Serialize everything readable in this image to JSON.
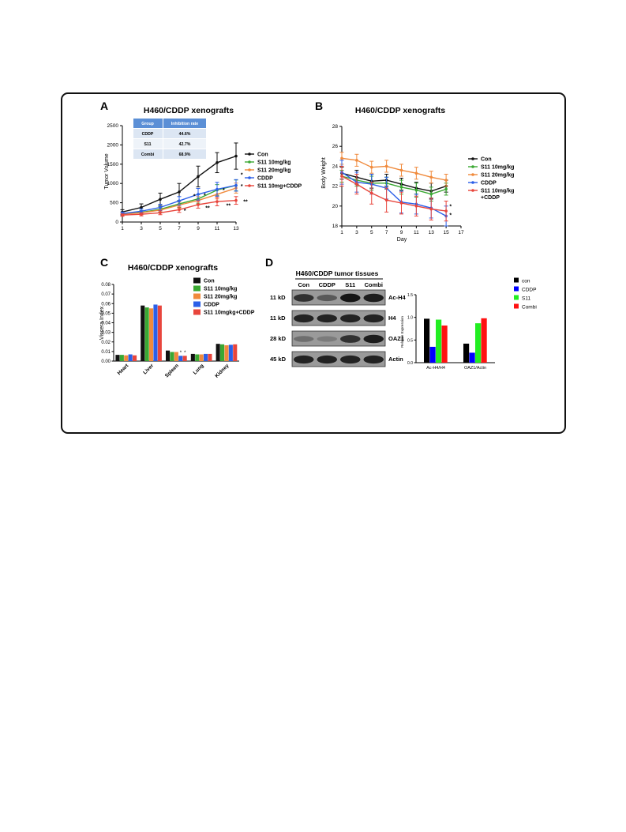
{
  "panel_labels": {
    "A": "A",
    "B": "B",
    "C": "C",
    "D": "D"
  },
  "colors": {
    "con": "#111111",
    "s11_10": "#3aa832",
    "s11_20": "#f08a3c",
    "cddp": "#2b5fe8",
    "combi": "#e8453c",
    "d_con": "#000000",
    "d_cddp": "#0000ff",
    "d_s11": "#22ee22",
    "d_combi": "#ff1111",
    "table_header": "#5b8fd6",
    "table_row": "#dce6f3"
  },
  "inhibition_table": {
    "headers": [
      "Group",
      "Inhibition rate"
    ],
    "rows": [
      [
        "CDDP",
        "44.6%"
      ],
      [
        "S11",
        "42.7%"
      ],
      [
        "Combi",
        "68.9%"
      ]
    ]
  },
  "blot": {
    "title": "H460/CDDP tumor tissues",
    "lanes": [
      "Con",
      "CDDP",
      "S11",
      "Combi"
    ],
    "bands": [
      {
        "kd": "11 kD",
        "name": "Ac-H4",
        "intensity": [
          0.75,
          0.45,
          0.95,
          0.9
        ]
      },
      {
        "kd": "11 kD",
        "name": "H4",
        "intensity": [
          0.85,
          0.85,
          0.85,
          0.85
        ]
      },
      {
        "kd": "28 kD",
        "name": "OAZ1",
        "intensity": [
          0.3,
          0.2,
          0.75,
          0.9
        ]
      },
      {
        "kd": "45 kD",
        "name": "Actin",
        "intensity": [
          0.85,
          0.85,
          0.85,
          0.85
        ]
      }
    ]
  },
  "chart_data": [
    {
      "type": "line",
      "title": "H460/CDDP xenografts",
      "xlabel": "",
      "ylabel": "Tumor Volume",
      "x": [
        1,
        3,
        5,
        7,
        9,
        11,
        13
      ],
      "xticks": [
        "1",
        "3",
        "5",
        "7",
        "9",
        "11",
        "13"
      ],
      "ylim": [
        0,
        2500
      ],
      "yticks": [
        "0",
        "500",
        "1000",
        "1500",
        "2000",
        "2500"
      ],
      "legend_position": "right",
      "series": [
        {
          "name": "Con",
          "color_key": "con",
          "values": [
            260,
            380,
            590,
            780,
            1180,
            1540,
            1710
          ],
          "err": [
            60,
            90,
            160,
            220,
            270,
            260,
            340
          ]
        },
        {
          "name": "S11 10mg/kg",
          "color_key": "s11_10",
          "values": [
            210,
            250,
            330,
            470,
            600,
            830,
            950
          ],
          "err": [
            40,
            50,
            70,
            90,
            110,
            140,
            140
          ]
        },
        {
          "name": "S11 20mg/kg",
          "color_key": "s11_20",
          "values": [
            200,
            240,
            310,
            440,
            560,
            720,
            880
          ],
          "err": [
            40,
            50,
            60,
            80,
            100,
            120,
            130
          ]
        },
        {
          "name": "CDDP",
          "color_key": "cddp",
          "values": [
            220,
            280,
            380,
            550,
            720,
            850,
            950
          ],
          "err": [
            40,
            60,
            80,
            110,
            150,
            180,
            150
          ]
        },
        {
          "name": "S11 10mg+CDDP",
          "color_key": "combi",
          "values": [
            180,
            200,
            240,
            320,
            450,
            530,
            560
          ],
          "err": [
            30,
            40,
            50,
            70,
            90,
            110,
            100
          ]
        }
      ],
      "annotations": [
        {
          "text": "*",
          "x": 8.6,
          "y": 620
        },
        {
          "text": "*",
          "x": 9.7,
          "y": 650
        },
        {
          "text": "*",
          "x": 11.7,
          "y": 780
        },
        {
          "text": "*",
          "x": 13.6,
          "y": 1180
        },
        {
          "text": "*",
          "x": 13.6,
          "y": 880
        },
        {
          "text": "*",
          "x": 7.6,
          "y": 250
        },
        {
          "text": "**",
          "x": 10.0,
          "y": 320
        },
        {
          "text": "**",
          "x": 12.2,
          "y": 380
        },
        {
          "text": "**",
          "x": 14.0,
          "y": 480
        }
      ]
    },
    {
      "type": "line",
      "title": "H460/CDDP xenografts",
      "xlabel": "Day",
      "ylabel": "Body Weight",
      "x": [
        1,
        3,
        5,
        7,
        9,
        11,
        13,
        15
      ],
      "xticks": [
        "1",
        "3",
        "5",
        "7",
        "9",
        "11",
        "13",
        "15",
        "17"
      ],
      "xlim": [
        1,
        17
      ],
      "ylim": [
        18,
        28
      ],
      "yticks": [
        "18",
        "20",
        "22",
        "24",
        "26",
        "28"
      ],
      "legend_position": "right",
      "series": [
        {
          "name": "Con",
          "color_key": "con",
          "values": [
            23.3,
            22.9,
            22.5,
            22.6,
            22.2,
            21.8,
            21.5,
            22.0
          ],
          "err": [
            0.6,
            0.7,
            0.7,
            0.6,
            0.6,
            0.6,
            0.8,
            0.6
          ]
        },
        {
          "name": "S11 10mg/kg",
          "color_key": "s11_10",
          "values": [
            23.0,
            22.6,
            22.3,
            22.3,
            21.9,
            21.6,
            21.2,
            21.7
          ],
          "err": [
            0.6,
            0.6,
            0.7,
            0.6,
            0.7,
            0.7,
            0.7,
            0.6
          ]
        },
        {
          "name": "S11 20mg/kg",
          "color_key": "s11_20",
          "values": [
            24.8,
            24.6,
            23.9,
            24.0,
            23.6,
            23.3,
            22.9,
            22.6
          ],
          "err": [
            0.6,
            0.6,
            0.6,
            0.6,
            0.6,
            0.6,
            0.6,
            0.6
          ]
        },
        {
          "name": "CDDP",
          "color_key": "cddp",
          "values": [
            23.4,
            22.4,
            22.2,
            21.8,
            20.4,
            20.2,
            19.8,
            19.0
          ],
          "err": [
            1.2,
            1.0,
            1.0,
            1.1,
            1.1,
            1.0,
            1.0,
            1.0
          ]
        },
        {
          "name": "S11 10mg/kg\n+CDDP",
          "color_key": "combi",
          "values": [
            23.0,
            22.2,
            21.3,
            20.6,
            20.3,
            20.0,
            19.7,
            19.5
          ],
          "err": [
            1.0,
            1.0,
            1.1,
            1.2,
            1.1,
            1.0,
            1.1,
            1.0
          ]
        }
      ],
      "annotations": [
        {
          "text": "*",
          "x": 15.6,
          "y": 19.8
        },
        {
          "text": "*",
          "x": 15.6,
          "y": 18.9
        }
      ]
    },
    {
      "type": "bar",
      "title": "H460/CDDP xenografts",
      "xlabel": "",
      "ylabel": "Viscera Index",
      "categories": [
        "Heart",
        "Liver",
        "Spleen",
        "Lung",
        "Kidney"
      ],
      "ylim": [
        0,
        0.08
      ],
      "yticks": [
        "0.00",
        "0.01",
        "0.02",
        "0.03",
        "0.04",
        "0.05",
        "0.06",
        "0.07",
        "0.08"
      ],
      "legend_position": "top-right",
      "series": [
        {
          "name": "Con",
          "color_key": "con",
          "values": [
            0.0065,
            0.058,
            0.011,
            0.0075,
            0.018
          ]
        },
        {
          "name": "S11 10mg/kg",
          "color_key": "s11_10",
          "values": [
            0.0065,
            0.056,
            0.0095,
            0.007,
            0.0175
          ]
        },
        {
          "name": "S11 20mg/kg",
          "color_key": "s11_20",
          "values": [
            0.006,
            0.055,
            0.0095,
            0.007,
            0.0165
          ]
        },
        {
          "name": "CDDP",
          "color_key": "cddp",
          "values": [
            0.007,
            0.059,
            0.0055,
            0.0075,
            0.017
          ]
        },
        {
          "name": "S11 10mgkg+CDDP",
          "color_key": "combi",
          "values": [
            0.006,
            0.058,
            0.0055,
            0.0075,
            0.0175
          ]
        }
      ],
      "annotations": [
        {
          "text": "*",
          "category": 2,
          "series": 3,
          "y": 0.0075
        },
        {
          "text": "*",
          "category": 2,
          "series": 4,
          "y": 0.0075
        }
      ]
    },
    {
      "type": "bar",
      "title": "",
      "xlabel": "",
      "ylabel": "Relative Expression",
      "categories": [
        "Ac-H4/H4",
        "OAZ1/Actin"
      ],
      "ylim": [
        0,
        1.5
      ],
      "yticks": [
        "0.0",
        "0.5",
        "1.0",
        "1.5"
      ],
      "legend_position": "top-right",
      "series": [
        {
          "name": "con",
          "color_key": "d_con",
          "values": [
            0.97,
            0.42
          ]
        },
        {
          "name": "CDDP",
          "color_key": "d_cddp",
          "values": [
            0.35,
            0.22
          ]
        },
        {
          "name": "S11",
          "color_key": "d_s11",
          "values": [
            0.95,
            0.87
          ]
        },
        {
          "name": "Combi",
          "color_key": "d_combi",
          "values": [
            0.82,
            0.98
          ]
        }
      ]
    }
  ]
}
